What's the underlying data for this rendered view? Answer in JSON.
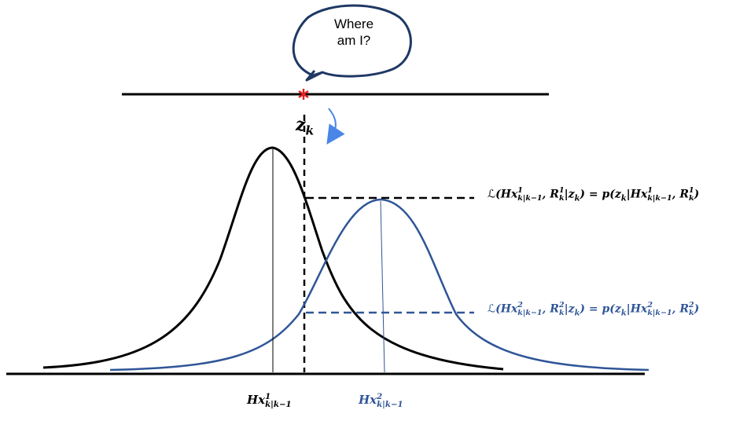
{
  "bubble": {
    "line1": "Where",
    "line2": "am I?"
  },
  "measurement": {
    "symbol": "z",
    "subscript": "k"
  },
  "likelihood_1": {
    "lhs_script": "ℒ",
    "lhs_open": "(",
    "H": "Hx",
    "sup": "1",
    "sub": "k|k−1",
    "R": "R",
    "R_sup": "1",
    "R_sub": "k",
    "given": "|z",
    "given_sub": "k",
    "rhs": ") = p(z",
    "rhs_sub": "k",
    "rhs_given": "|Hx",
    "rhs_sup": "1",
    "rhs_sub2": "k|k−1",
    "rhs_R": ", R",
    "rhs_R_sup": "1",
    "rhs_R_sub": "k",
    "close": ")"
  },
  "likelihood_2": {
    "lhs_script": "ℒ",
    "lhs_open": "(",
    "H": "Hx",
    "sup": "2",
    "sub": "k|k−1",
    "R": "R",
    "R_sup": "2",
    "R_sub": "k",
    "given": "|z",
    "given_sub": "k",
    "rhs": ") = p(z",
    "rhs_sub": "k",
    "rhs_given": "|Hx",
    "rhs_sup": "2",
    "rhs_sub2": "k|k−1",
    "rhs_R": ", R",
    "rhs_R_sup": "2",
    "rhs_R_sub": "k",
    "close": ")"
  },
  "mean_1": {
    "H": "Hx",
    "sup": "1",
    "sub": "k|k−1"
  },
  "mean_2": {
    "H": "Hx",
    "sup": "2",
    "sub": "k|k−1"
  },
  "colors": {
    "black": "#000000",
    "blue": "#2f5597",
    "marker": "#e02020",
    "arrow": "#4a86e8",
    "bubble_stroke": "#1f3864"
  }
}
